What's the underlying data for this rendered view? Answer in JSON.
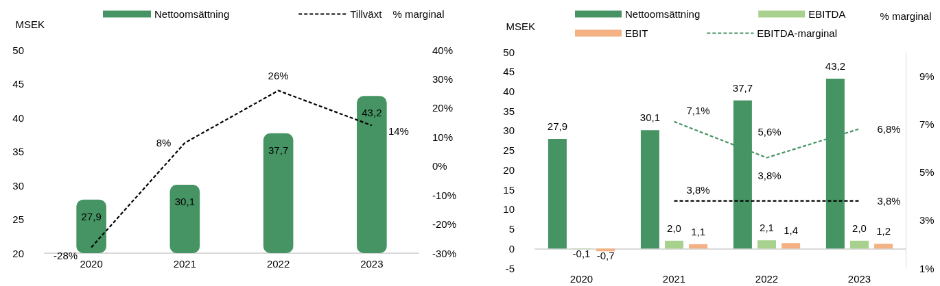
{
  "chart_data": [
    {
      "type": "bar",
      "categories": [
        "2020",
        "2021",
        "2022",
        "2023"
      ],
      "ylabel": "MSEK",
      "y2label": "% marginal",
      "ylim": [
        20,
        50
      ],
      "yticks": [
        20,
        25,
        30,
        35,
        40,
        45,
        50
      ],
      "y2lim": [
        -30,
        40
      ],
      "y2ticks": [
        {
          "value": -30,
          "label": "-30%"
        },
        {
          "value": -20,
          "label": "-20%"
        },
        {
          "value": -10,
          "label": "-10%"
        },
        {
          "value": 0,
          "label": "0%"
        },
        {
          "value": 10,
          "label": "10%"
        },
        {
          "value": 20,
          "label": "20%"
        },
        {
          "value": 30,
          "label": "30%"
        },
        {
          "value": 40,
          "label": "40%"
        }
      ],
      "legend": "top",
      "grid": false,
      "marker": "none",
      "series": [
        {
          "name": "Nettoomsättning",
          "color": "#469463",
          "values": [
            27.9,
            30.1,
            37.7,
            43.2
          ],
          "value_labels": [
            "27,9",
            "30,1",
            "37,7",
            "43,2"
          ]
        },
        {
          "name": "Tillväxt",
          "type": "line",
          "axis": "y2",
          "line_style": "dashed",
          "color": "#000000",
          "values": [
            -28,
            8,
            26,
            14
          ],
          "value_labels": [
            "-28%",
            "8%",
            "26%",
            "14%"
          ]
        }
      ]
    },
    {
      "type": "bar",
      "categories": [
        "2020",
        "2021",
        "2022",
        "2023"
      ],
      "ylabel": "MSEK",
      "y2label": "% marginal",
      "ylim": [
        -5,
        50
      ],
      "yticks": [
        -5,
        0,
        5,
        10,
        15,
        20,
        25,
        30,
        35,
        40,
        45,
        50
      ],
      "y2lim": [
        1,
        10
      ],
      "y2ticks": [
        {
          "value": 1,
          "label": "1%"
        },
        {
          "value": 3,
          "label": "3%"
        },
        {
          "value": 5,
          "label": "5%"
        },
        {
          "value": 7,
          "label": "7%"
        },
        {
          "value": 9,
          "label": "9%"
        }
      ],
      "legend": "top",
      "grid": false,
      "marker": "none",
      "series": [
        {
          "name": "Nettoomsättning",
          "color": "#469463",
          "values": [
            27.9,
            30.1,
            37.7,
            43.2
          ],
          "value_labels": [
            "27,9",
            "30,1",
            "37,7",
            "43,2"
          ]
        },
        {
          "name": "EBITDA",
          "color": "#a9d18e",
          "values": [
            -0.1,
            2.0,
            2.1,
            2.0
          ],
          "value_labels": [
            "-0,1",
            "2,0",
            "2,1",
            "2,0"
          ]
        },
        {
          "name": "EBIT",
          "color": "#f4b183",
          "values": [
            -0.7,
            1.1,
            1.4,
            1.2
          ],
          "value_labels": [
            "-0,7",
            "1,1",
            "1,4",
            "1,2"
          ]
        },
        {
          "name": "EBITDA-marginal",
          "type": "line",
          "axis": "y2",
          "line_style": "dashed",
          "color": "#469463",
          "values": [
            null,
            7.1,
            5.6,
            6.8
          ],
          "value_labels": [
            null,
            "7,1%",
            "5,6%",
            "6,8%"
          ]
        },
        {
          "type": "line",
          "axis": "y2",
          "line_style": "dashed",
          "color": "#000000",
          "values": [
            null,
            3.8,
            3.8,
            3.8
          ],
          "value_labels": [
            null,
            "3,8%",
            "3,8%",
            "3,8%"
          ]
        }
      ]
    }
  ]
}
